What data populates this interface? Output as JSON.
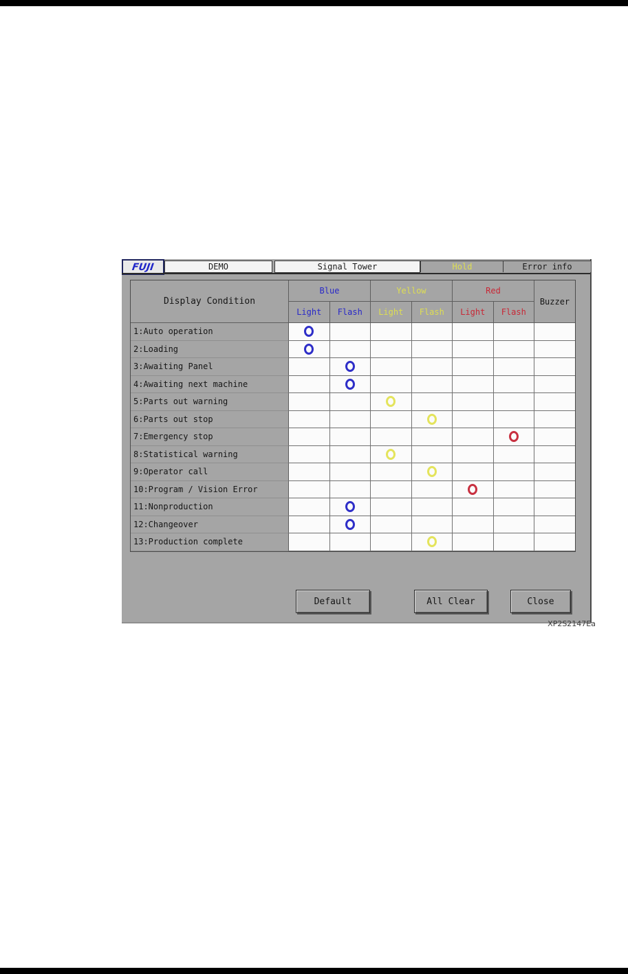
{
  "header": {
    "logo": "FUJI",
    "machine_name": "DEMO",
    "screen_title": "Signal Tower",
    "status": "Hold",
    "error_info_label": "Error info"
  },
  "table": {
    "condition_header": "Display Condition",
    "buzzer_header": "Buzzer",
    "color_groups": [
      {
        "label": "Blue",
        "color": "#2828c8"
      },
      {
        "label": "Yellow",
        "color": "#dede52"
      },
      {
        "label": "Red",
        "color": "#c82836"
      }
    ],
    "sub_headers": [
      "Light",
      "Flash"
    ],
    "rows": [
      {
        "label": "1:Auto operation",
        "mark_col": 0,
        "mark_color": "blue"
      },
      {
        "label": "2:Loading",
        "mark_col": 0,
        "mark_color": "blue"
      },
      {
        "label": "3:Awaiting Panel",
        "mark_col": 1,
        "mark_color": "blue"
      },
      {
        "label": "4:Awaiting next machine",
        "mark_col": 1,
        "mark_color": "blue"
      },
      {
        "label": "5:Parts out warning",
        "mark_col": 2,
        "mark_color": "yellow"
      },
      {
        "label": "6:Parts out stop",
        "mark_col": 3,
        "mark_color": "yellow"
      },
      {
        "label": "7:Emergency stop",
        "mark_col": 5,
        "mark_color": "red"
      },
      {
        "label": "8:Statistical warning",
        "mark_col": 2,
        "mark_color": "yellow"
      },
      {
        "label": "9:Operator call",
        "mark_col": 3,
        "mark_color": "yellow"
      },
      {
        "label": "10:Program / Vision Error",
        "mark_col": 4,
        "mark_color": "red"
      },
      {
        "label": "11:Nonproduction",
        "mark_col": 1,
        "mark_color": "blue"
      },
      {
        "label": "12:Changeover",
        "mark_col": 1,
        "mark_color": "blue"
      },
      {
        "label": "13:Production complete",
        "mark_col": 3,
        "mark_color": "yellow"
      }
    ]
  },
  "buttons": {
    "default_label": "Default",
    "all_clear_label": "All Clear",
    "close_label": "Close"
  },
  "figure_code": "XP2S2147Ea",
  "colors": {
    "panel_gray": "#a5a5a5",
    "signal_blue": "#2e2ec8",
    "signal_yellow": "#e4e45c",
    "signal_red": "#c83040"
  }
}
